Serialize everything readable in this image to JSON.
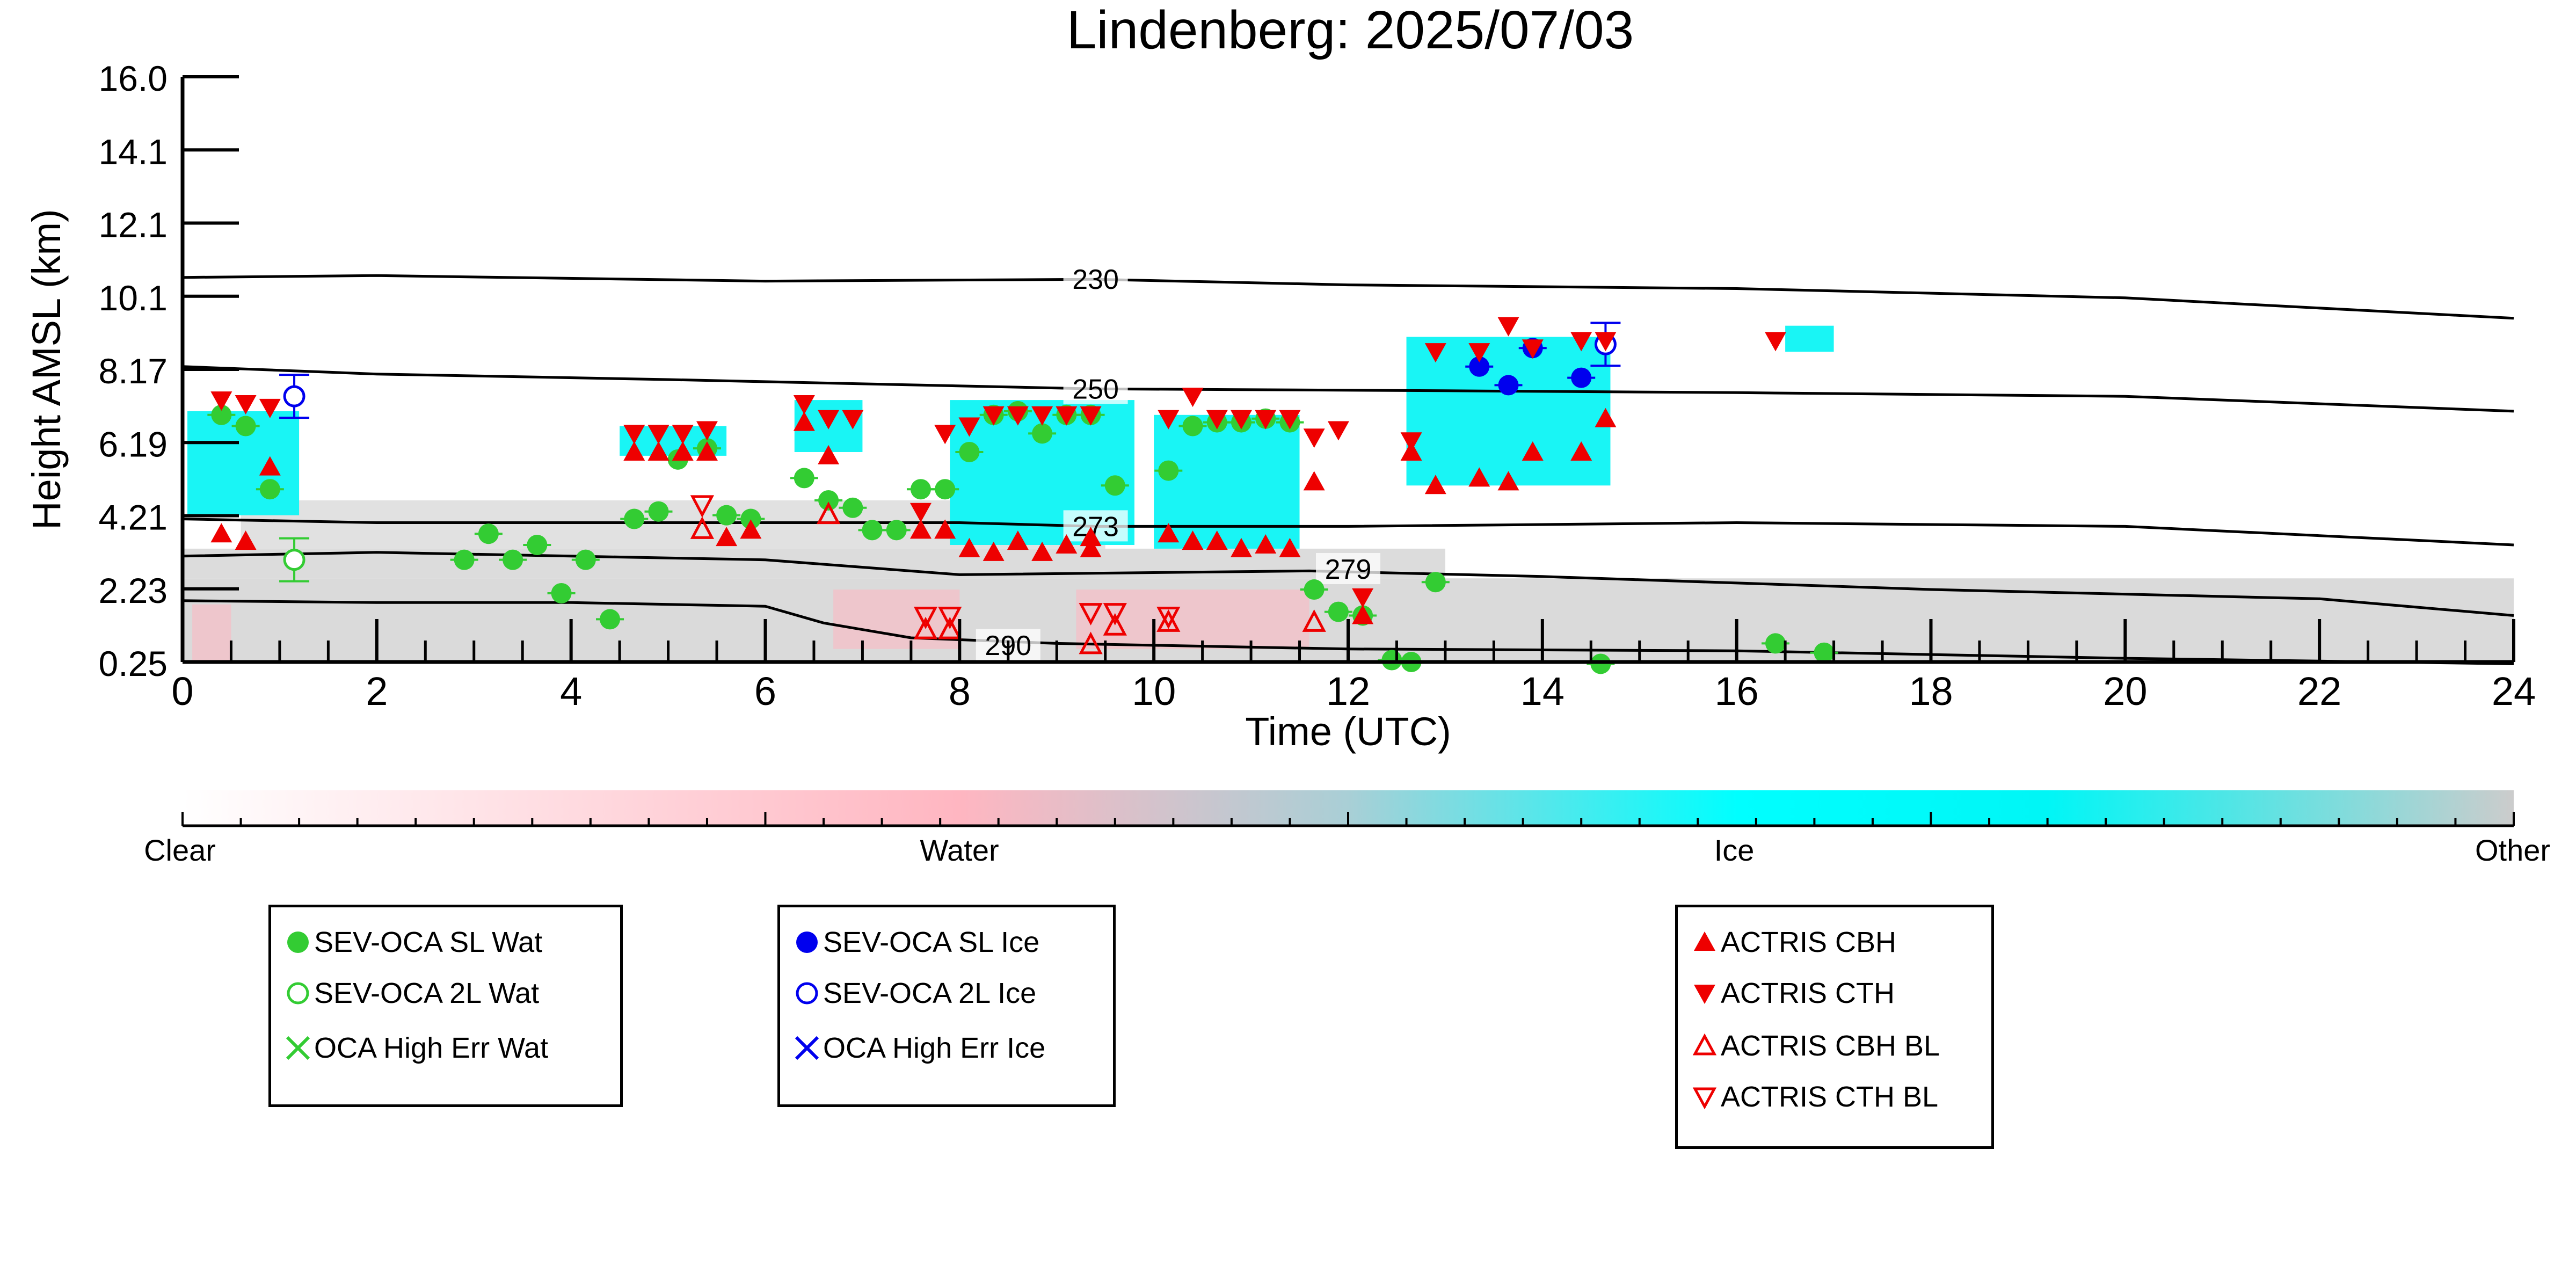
{
  "title": "Lindenberg: 2025/07/03",
  "chart_data": {
    "type": "scatter",
    "title": "Lindenberg: 2025/07/03",
    "xlabel": "Time (UTC)",
    "ylabel": "Height AMSL (km)",
    "xlim": [
      0,
      24
    ],
    "ylim": [
      0.25,
      16.0
    ],
    "x_ticks": [
      "0",
      "2",
      "4",
      "6",
      "8",
      "10",
      "12",
      "14",
      "16",
      "18",
      "20",
      "22",
      "24"
    ],
    "y_ticks": [
      "0.25",
      "2.23",
      "4.21",
      "6.19",
      "8.17",
      "10.1",
      "12.1",
      "14.1",
      "16.0"
    ],
    "isotherm_labels": [
      "230",
      "250",
      "273",
      "279",
      "290"
    ],
    "isotherms": [
      {
        "label": "230",
        "x": [
          0,
          2,
          6,
          9.4,
          12,
          16,
          20,
          24
        ],
        "y": [
          10.6,
          10.65,
          10.5,
          10.55,
          10.4,
          10.3,
          10.05,
          9.5
        ]
      },
      {
        "label": "250",
        "x": [
          0,
          2,
          5,
          9.4,
          13,
          16,
          20,
          24
        ],
        "y": [
          8.2,
          8.0,
          7.85,
          7.6,
          7.55,
          7.5,
          7.4,
          7.0
        ]
      },
      {
        "label": "273",
        "x": [
          0,
          2,
          5,
          8,
          9.4,
          12,
          16,
          20,
          24
        ],
        "y": [
          4.1,
          4.0,
          4.0,
          4.0,
          3.9,
          3.9,
          4.0,
          3.9,
          3.4
        ]
      },
      {
        "label": "279",
        "x": [
          0,
          2,
          4,
          6,
          8,
          11.6,
          14,
          18,
          22,
          24
        ],
        "y": [
          3.1,
          3.2,
          3.1,
          3.0,
          2.6,
          2.7,
          2.55,
          2.2,
          1.95,
          1.5
        ]
      },
      {
        "label": "290",
        "x": [
          0,
          2,
          4,
          6,
          6.6,
          7.5,
          9,
          12,
          16,
          20,
          24
        ],
        "y": [
          1.9,
          1.85,
          1.85,
          1.75,
          1.3,
          0.9,
          0.75,
          0.6,
          0.55,
          0.35,
          0.2
        ]
      }
    ],
    "series": [
      {
        "name": "SEV-OCA SL Wat",
        "color": "#33cc33",
        "marker": "filled-circle",
        "x": [
          0.4,
          0.65,
          0.9,
          2.9,
          3.15,
          3.4,
          3.65,
          3.9,
          4.15,
          4.4,
          4.65,
          4.9,
          5.1,
          5.4,
          5.6,
          5.85,
          6.4,
          6.65,
          6.9,
          7.1,
          7.35,
          7.6,
          7.85,
          8.1,
          8.35,
          8.6,
          8.85,
          9.1,
          9.35,
          9.6,
          10.15,
          10.4,
          10.65,
          10.9,
          11.15,
          11.4,
          11.65,
          11.9,
          12.15,
          12.45,
          12.65,
          12.9,
          16.4,
          16.9,
          14.6
        ],
        "y": [
          6.9,
          6.6,
          4.9,
          3.0,
          3.7,
          3.0,
          3.4,
          2.1,
          3.0,
          1.4,
          4.1,
          4.3,
          5.7,
          6.0,
          4.2,
          4.1,
          5.2,
          4.6,
          4.4,
          3.8,
          3.8,
          4.9,
          4.9,
          5.9,
          6.9,
          7.0,
          6.4,
          6.9,
          6.9,
          5.0,
          5.4,
          6.6,
          6.7,
          6.7,
          6.8,
          6.7,
          2.2,
          1.6,
          1.5,
          0.3,
          0.25,
          2.4,
          0.75,
          0.5,
          0.2
        ]
      },
      {
        "name": "SEV-OCA 2L Wat",
        "color": "#33cc33",
        "marker": "open-circle",
        "x": [
          1.15
        ],
        "y": [
          3.0
        ]
      },
      {
        "name": "OCA High Err Wat",
        "color": "#33cc33",
        "marker": "x",
        "x": [],
        "y": []
      },
      {
        "name": "SEV-OCA SL Ice",
        "color": "#0000ee",
        "marker": "filled-circle",
        "x": [
          13.35,
          13.65,
          13.9,
          14.4
        ],
        "y": [
          8.2,
          7.7,
          8.7,
          7.9
        ]
      },
      {
        "name": "SEV-OCA 2L Ice",
        "color": "#0000ee",
        "marker": "open-circle",
        "x": [
          1.15,
          14.65
        ],
        "y": [
          7.4,
          8.8
        ]
      },
      {
        "name": "OCA High Err Ice",
        "color": "#0000ee",
        "marker": "x",
        "x": [],
        "y": []
      },
      {
        "name": "ACTRIS CBH",
        "color": "#ee0000",
        "marker": "filled-triangle-up",
        "x": [
          0.4,
          0.65,
          0.9,
          4.65,
          4.9,
          5.15,
          5.4,
          5.6,
          5.85,
          6.4,
          6.65,
          7.6,
          7.85,
          8.1,
          8.35,
          8.6,
          8.85,
          9.1,
          9.35,
          10.15,
          10.4,
          10.65,
          10.9,
          11.15,
          11.4,
          11.65,
          12.15,
          12.65,
          12.9,
          13.35,
          13.65,
          13.9,
          14.4,
          14.65,
          9.35
        ],
        "y": [
          3.7,
          3.5,
          5.5,
          5.9,
          5.9,
          5.9,
          5.9,
          3.6,
          3.8,
          6.7,
          5.8,
          3.8,
          3.8,
          3.3,
          3.2,
          3.5,
          3.2,
          3.4,
          3.6,
          3.7,
          3.5,
          3.5,
          3.3,
          3.4,
          3.3,
          5.1,
          1.5,
          5.9,
          5.0,
          5.2,
          5.1,
          5.9,
          5.9,
          6.8,
          3.3
        ]
      },
      {
        "name": "ACTRIS CTH",
        "color": "#ee0000",
        "marker": "filled-triangle-down",
        "x": [
          0.4,
          0.65,
          0.9,
          4.65,
          4.9,
          5.15,
          5.4,
          6.4,
          6.65,
          6.9,
          7.6,
          7.85,
          8.1,
          8.35,
          8.6,
          8.85,
          9.1,
          9.35,
          10.15,
          10.4,
          10.65,
          10.9,
          11.15,
          11.4,
          11.65,
          11.9,
          12.15,
          12.65,
          12.9,
          13.35,
          13.65,
          13.9,
          14.4,
          14.65,
          16.4
        ],
        "y": [
          7.3,
          7.2,
          7.1,
          6.4,
          6.4,
          6.4,
          6.5,
          7.2,
          6.8,
          6.8,
          4.3,
          6.4,
          6.6,
          6.9,
          6.9,
          6.9,
          6.9,
          6.9,
          6.8,
          7.4,
          6.8,
          6.8,
          6.8,
          6.8,
          6.3,
          6.5,
          2.0,
          6.2,
          8.6,
          8.6,
          9.3,
          8.7,
          8.9,
          8.9,
          8.9
        ]
      },
      {
        "name": "ACTRIS CBH BL",
        "color": "#ee0000",
        "marker": "open-triangle-up",
        "x": [
          5.35,
          6.65,
          7.65,
          7.9,
          9.35,
          9.6,
          10.15,
          11.65
        ],
        "y": [
          3.8,
          4.2,
          1.1,
          1.1,
          0.7,
          1.2,
          1.3,
          1.3
        ]
      },
      {
        "name": "ACTRIS CTH BL",
        "color": "#ee0000",
        "marker": "open-triangle-down",
        "x": [
          5.35,
          7.65,
          7.9,
          9.35,
          9.6,
          10.15
        ],
        "y": [
          4.5,
          1.5,
          1.5,
          1.6,
          1.6,
          1.5
        ]
      }
    ],
    "colorbar": {
      "labels": [
        "Clear",
        "Water",
        "Ice",
        "Other"
      ],
      "colors": [
        "#ffffff",
        "#ffb6c1",
        "#00ffff",
        "#cccccc"
      ]
    },
    "legend_groups": [
      [
        "SEV-OCA SL Wat",
        "SEV-OCA 2L Wat",
        "OCA High Err Wat"
      ],
      [
        "SEV-OCA SL Ice",
        "SEV-OCA 2L Ice",
        "OCA High Err Ice"
      ],
      [
        "ACTRIS CBH",
        "ACTRIS CTH",
        "ACTRIS CBH BL",
        "ACTRIS CTH BL"
      ]
    ],
    "legend_placement": "below",
    "grid": false
  }
}
